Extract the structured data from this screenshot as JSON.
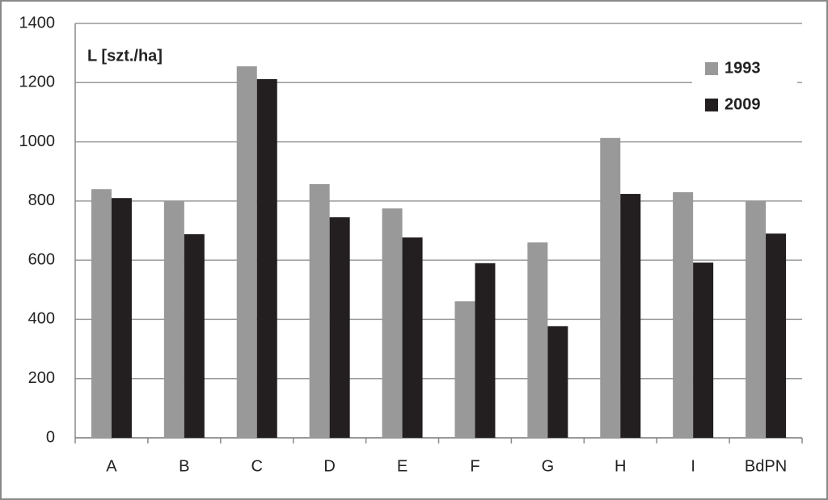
{
  "chart_data": {
    "type": "bar",
    "ylabel": "L [szt./ha]",
    "categories": [
      "A",
      "B",
      "C",
      "D",
      "E",
      "F",
      "G",
      "H",
      "I",
      "BdPN"
    ],
    "series": [
      {
        "name": "1993",
        "color": "#999999",
        "values": [
          840,
          800,
          1255,
          857,
          775,
          461,
          660,
          1013,
          830,
          800
        ]
      },
      {
        "name": "2009",
        "color": "#231f20",
        "values": [
          810,
          688,
          1212,
          745,
          677,
          590,
          377,
          824,
          592,
          690
        ]
      }
    ],
    "ylim": [
      0,
      1400
    ],
    "yticks": [
      0,
      200,
      400,
      600,
      800,
      1000,
      1200,
      1400
    ],
    "grid": true,
    "legend": "top-right"
  }
}
